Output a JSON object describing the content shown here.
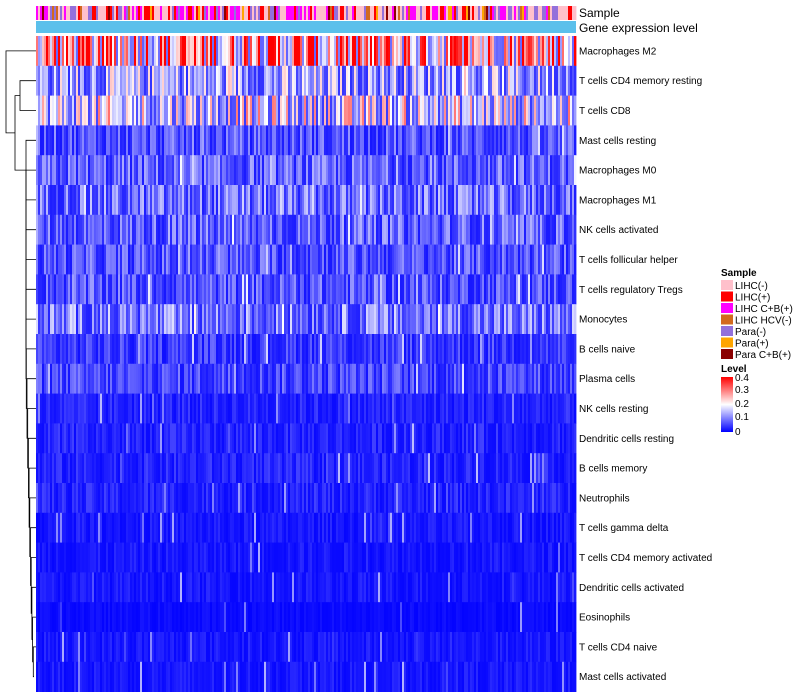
{
  "chart_data": {
    "type": "heatmap",
    "title": "",
    "annotation_tracks": [
      {
        "label": "Sample"
      },
      {
        "label": "Gene expression level"
      }
    ],
    "rows": [
      {
        "label": "Macrophages M2",
        "mean": 0.3
      },
      {
        "label": "T cells CD4 memory resting",
        "mean": 0.14
      },
      {
        "label": "T cells CD8",
        "mean": 0.18
      },
      {
        "label": "Mast cells resting",
        "mean": 0.07
      },
      {
        "label": "Macrophages M0",
        "mean": 0.08
      },
      {
        "label": "Macrophages M1",
        "mean": 0.09
      },
      {
        "label": "NK cells activated",
        "mean": 0.08
      },
      {
        "label": "T cells follicular helper",
        "mean": 0.07
      },
      {
        "label": "T cells regulatory  Tregs",
        "mean": 0.07
      },
      {
        "label": "Monocytes",
        "mean": 0.1
      },
      {
        "label": "B cells naive",
        "mean": 0.05
      },
      {
        "label": "Plasma cells",
        "mean": 0.06
      },
      {
        "label": "NK cells resting",
        "mean": 0.03
      },
      {
        "label": "Dendritic cells resting",
        "mean": 0.03
      },
      {
        "label": "B cells memory",
        "mean": 0.03
      },
      {
        "label": "Neutrophils",
        "mean": 0.03
      },
      {
        "label": "T cells gamma delta",
        "mean": 0.02
      },
      {
        "label": "T cells CD4 memory activated",
        "mean": 0.02
      },
      {
        "label": "Dendritic cells activated",
        "mean": 0.02
      },
      {
        "label": "Eosinophils",
        "mean": 0.01
      },
      {
        "label": "T cells CD4 naive",
        "mean": 0.02
      },
      {
        "label": "Mast cells activated",
        "mean": 0.02
      }
    ],
    "sample_legend": {
      "title": "Sample",
      "entries": [
        {
          "label": "LIHC(-)",
          "color": "#ffc0cb"
        },
        {
          "label": "LIHC(+)",
          "color": "#ff0000"
        },
        {
          "label": "LIHC C+B(+)",
          "color": "#ff00ff"
        },
        {
          "label": "LIHC HCV(-)",
          "color": "#d2691e"
        },
        {
          "label": "Para(-)",
          "color": "#9370db"
        },
        {
          "label": "Para(+)",
          "color": "#ffa500"
        },
        {
          "label": "Para C+B(+)",
          "color": "#8b0000"
        }
      ]
    },
    "level_legend": {
      "title": "Level",
      "range": [
        0,
        0.4
      ],
      "ticks": [
        "0.4",
        "0.3",
        "0.2",
        "0.1",
        "0"
      ],
      "color_stops": [
        "#0000ff",
        "#ffffff",
        "#ff0000"
      ]
    },
    "gene_expression_color": "#5bc0eb"
  }
}
